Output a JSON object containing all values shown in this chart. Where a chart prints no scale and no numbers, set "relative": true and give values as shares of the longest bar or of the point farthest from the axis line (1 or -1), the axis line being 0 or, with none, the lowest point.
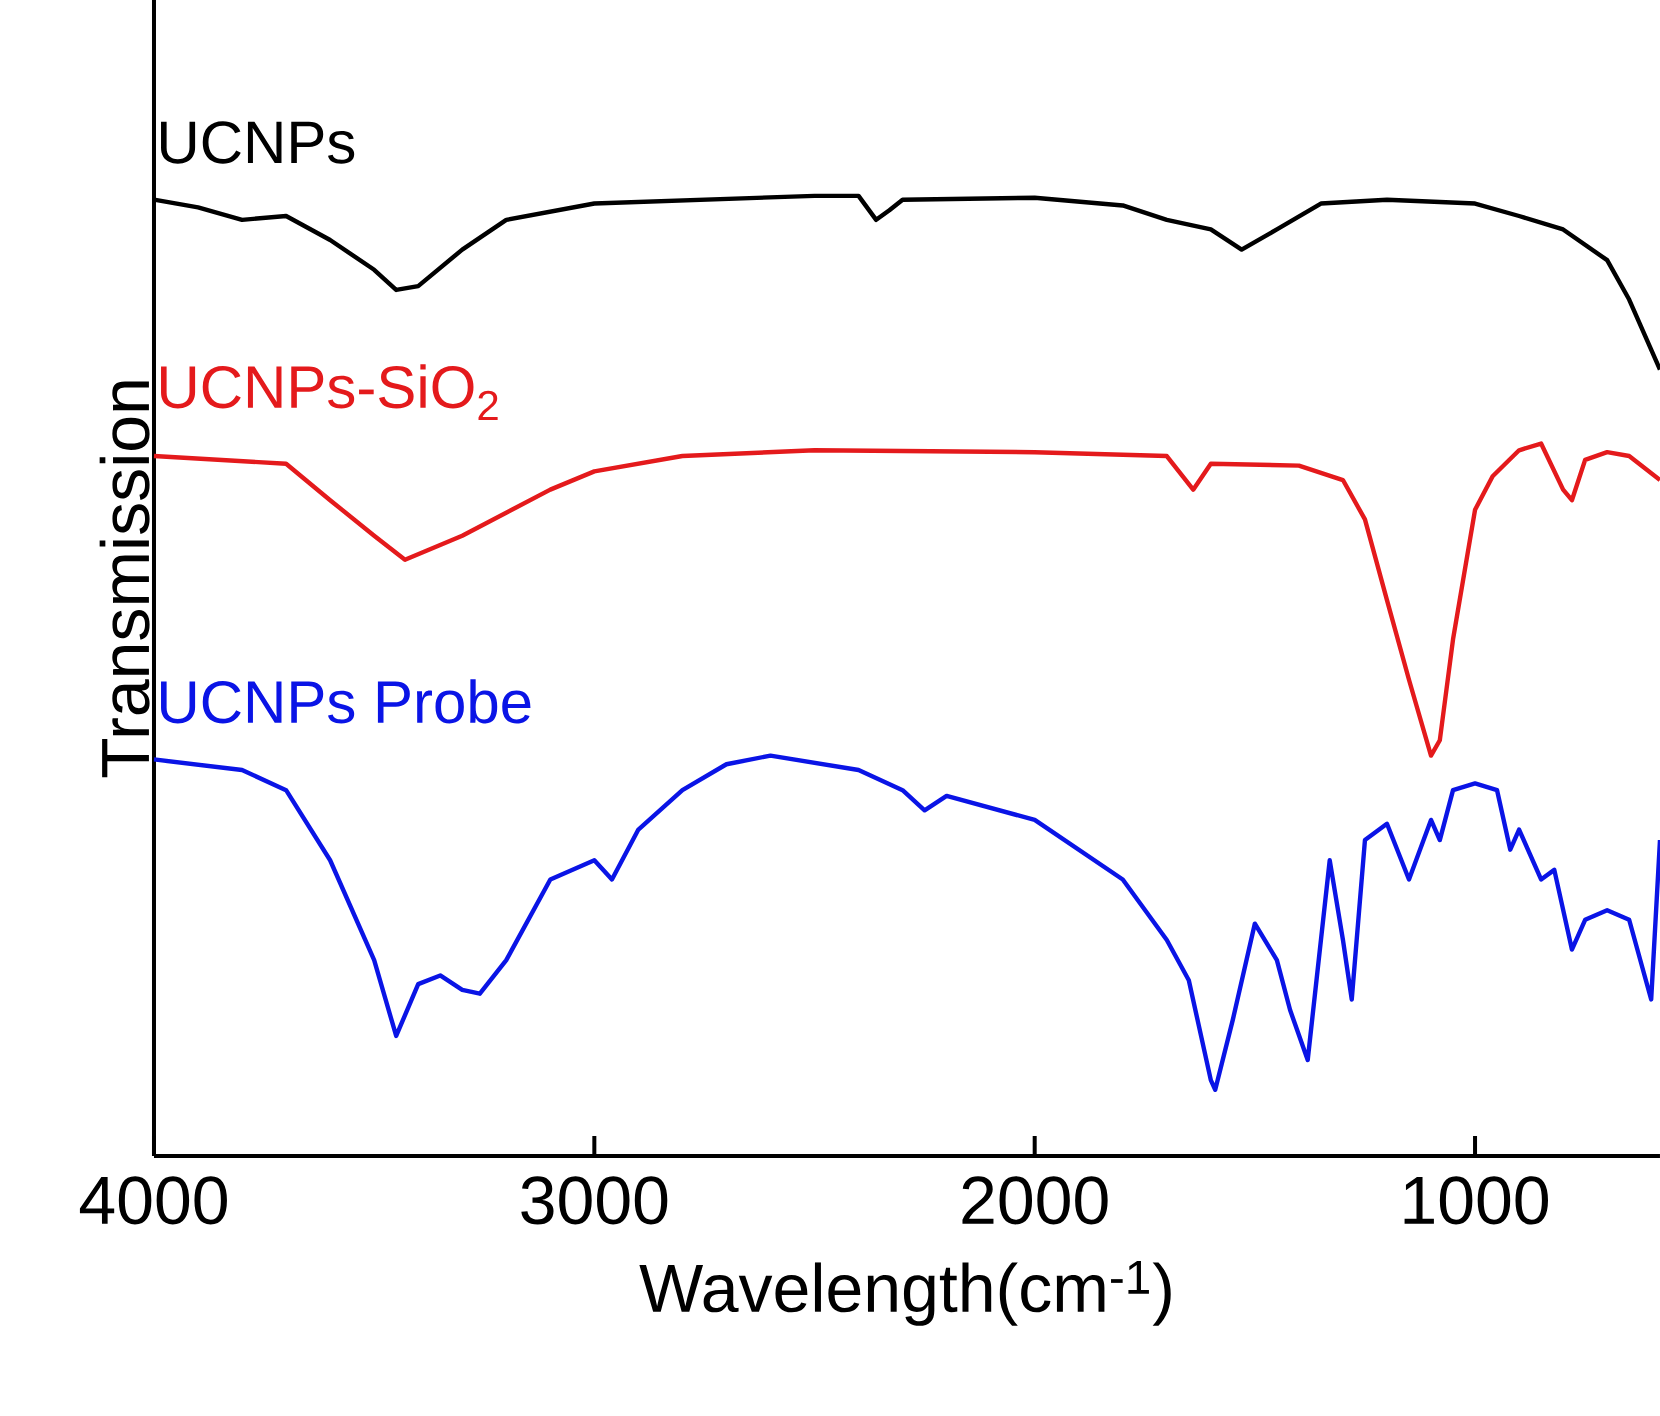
{
  "chart_data": {
    "type": "line",
    "relative": true,
    "xlabel": "Wavelength(cm$^{-1}$)",
    "ylabel": "Transmission",
    "xlim": [
      4000,
      580
    ],
    "xticks": [
      4000,
      3000,
      2000,
      1000
    ],
    "tick_labels": "x",
    "marker": "none",
    "line_style": "solid",
    "series": [
      {
        "name": "UCNPs",
        "color": "#000000",
        "x": [
          4000,
          3900,
          3800,
          3700,
          3600,
          3500,
          3450,
          3400,
          3300,
          3200,
          3000,
          2500,
          2400,
          2360,
          2330,
          2300,
          2000,
          1800,
          1700,
          1600,
          1530,
          1450,
          1350,
          1200,
          1000,
          900,
          800,
          700,
          650,
          580
        ],
        "values": [
          0.996,
          0.988,
          0.975,
          0.979,
          0.954,
          0.923,
          0.902,
          0.906,
          0.944,
          0.975,
          0.992,
          1.0,
          1.0,
          0.975,
          0.985,
          0.996,
          0.998,
          0.99,
          0.975,
          0.965,
          0.944,
          0.965,
          0.992,
          0.996,
          0.992,
          0.979,
          0.965,
          0.933,
          0.892,
          0.819
        ]
      },
      {
        "name": "UCNPs-SiO$_{2}$",
        "color": "#e41a1c",
        "x": [
          4000,
          3700,
          3600,
          3500,
          3430,
          3300,
          3100,
          3000,
          2800,
          2500,
          2000,
          1700,
          1640,
          1600,
          1400,
          1300,
          1250,
          1200,
          1150,
          1100,
          1080,
          1050,
          1000,
          960,
          900,
          850,
          800,
          780,
          750,
          700,
          650,
          580
        ],
        "values": [
          0.729,
          0.721,
          0.683,
          0.646,
          0.621,
          0.646,
          0.694,
          0.713,
          0.729,
          0.735,
          0.733,
          0.729,
          0.694,
          0.721,
          0.719,
          0.704,
          0.663,
          0.579,
          0.496,
          0.417,
          0.433,
          0.538,
          0.673,
          0.708,
          0.735,
          0.742,
          0.694,
          0.683,
          0.725,
          0.733,
          0.729,
          0.704
        ]
      },
      {
        "name": "UCNPs Probe",
        "color": "#0a14e6",
        "x": [
          4000,
          3800,
          3700,
          3600,
          3500,
          3450,
          3400,
          3350,
          3300,
          3260,
          3200,
          3100,
          3000,
          2960,
          2900,
          2800,
          2700,
          2600,
          2400,
          2300,
          2250,
          2200,
          2000,
          1800,
          1700,
          1650,
          1600,
          1590,
          1550,
          1500,
          1450,
          1420,
          1380,
          1330,
          1300,
          1280,
          1250,
          1200,
          1150,
          1100,
          1080,
          1050,
          1000,
          950,
          920,
          900,
          850,
          820,
          780,
          750,
          700,
          650,
          600,
          580
        ],
        "values": [
          0.413,
          0.402,
          0.381,
          0.308,
          0.204,
          0.125,
          0.179,
          0.188,
          0.173,
          0.169,
          0.204,
          0.288,
          0.308,
          0.288,
          0.34,
          0.381,
          0.408,
          0.417,
          0.402,
          0.381,
          0.36,
          0.375,
          0.35,
          0.288,
          0.225,
          0.183,
          0.079,
          0.069,
          0.142,
          0.242,
          0.204,
          0.152,
          0.1,
          0.308,
          0.225,
          0.163,
          0.329,
          0.346,
          0.288,
          0.35,
          0.329,
          0.381,
          0.388,
          0.381,
          0.319,
          0.34,
          0.288,
          0.298,
          0.215,
          0.246,
          0.256,
          0.246,
          0.163,
          0.329
        ]
      }
    ]
  }
}
